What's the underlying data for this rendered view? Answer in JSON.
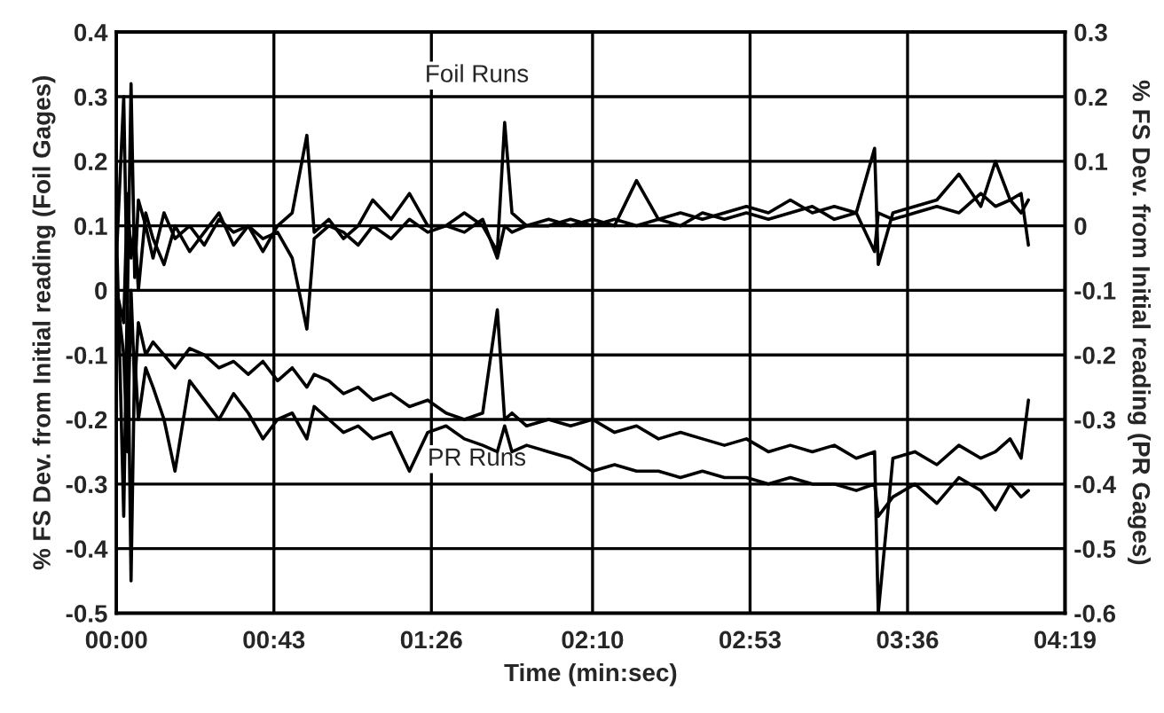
{
  "chart_data": {
    "type": "line",
    "xlabel": "Time (min:sec)",
    "ylabel": "% FS Dev. from Initial reading (Foil Gages)",
    "y2label": "% FS Dev. from Initial reading (PR Gages)",
    "x": [
      0,
      2,
      3,
      4,
      5,
      6,
      8,
      10,
      13,
      16,
      20,
      24,
      28,
      32,
      36,
      40,
      44,
      48,
      52,
      54,
      58,
      62,
      66,
      70,
      75,
      80,
      85,
      90,
      95,
      100,
      104,
      106,
      108,
      112,
      118,
      124,
      130,
      136,
      142,
      148,
      154,
      160,
      166,
      172,
      178,
      184,
      190,
      196,
      202,
      207,
      208,
      212,
      218,
      224,
      230,
      236,
      240,
      244,
      247,
      249
    ],
    "series": [
      {
        "color": "#000000",
        "values": [
          0.05,
          0.3,
          -0.02,
          0.32,
          0.02,
          0.14,
          0.1,
          0.05,
          0.12,
          0.08,
          0.1,
          0.07,
          0.11,
          0.09,
          0.1,
          0.06,
          0.1,
          0.12,
          0.24,
          0.09,
          0.11,
          0.08,
          0.1,
          0.14,
          0.11,
          0.15,
          0.1,
          0.1,
          0.12,
          0.1,
          0.06,
          0.26,
          0.12,
          0.1,
          0.11,
          0.1,
          0.11,
          0.1,
          0.17,
          0.11,
          0.12,
          0.11,
          0.12,
          0.13,
          0.12,
          0.14,
          0.12,
          0.13,
          0.12,
          0.22,
          0.04,
          0.12,
          0.13,
          0.14,
          0.18,
          0.13,
          0.2,
          0.14,
          0.15,
          0.07
        ]
      },
      {
        "color": "#000000",
        "values": [
          0.0,
          -0.05,
          0.15,
          0.05,
          0.1,
          0.0,
          0.12,
          0.08,
          0.04,
          0.1,
          0.06,
          0.09,
          0.12,
          0.07,
          0.1,
          0.08,
          0.09,
          0.05,
          -0.06,
          0.08,
          0.1,
          0.09,
          0.07,
          0.1,
          0.08,
          0.11,
          0.09,
          0.1,
          0.09,
          0.11,
          0.05,
          0.1,
          0.09,
          0.1,
          0.1,
          0.11,
          0.1,
          0.11,
          0.1,
          0.11,
          0.1,
          0.12,
          0.11,
          0.12,
          0.11,
          0.12,
          0.13,
          0.11,
          0.12,
          0.06,
          0.12,
          0.11,
          0.12,
          0.13,
          0.12,
          0.15,
          0.13,
          0.14,
          0.12,
          0.14
        ]
      },
      {
        "color": "#000000",
        "axis": "y2",
        "values": [
          -0.1,
          -0.2,
          -0.35,
          -0.1,
          -0.25,
          -0.15,
          -0.2,
          -0.18,
          -0.2,
          -0.22,
          -0.19,
          -0.2,
          -0.22,
          -0.21,
          -0.23,
          -0.21,
          -0.24,
          -0.22,
          -0.25,
          -0.23,
          -0.24,
          -0.26,
          -0.25,
          -0.27,
          -0.26,
          -0.28,
          -0.27,
          -0.29,
          -0.3,
          -0.29,
          -0.13,
          -0.3,
          -0.29,
          -0.31,
          -0.3,
          -0.31,
          -0.3,
          -0.32,
          -0.31,
          -0.33,
          -0.32,
          -0.33,
          -0.34,
          -0.33,
          -0.35,
          -0.34,
          -0.35,
          -0.34,
          -0.36,
          -0.35,
          -0.6,
          -0.36,
          -0.35,
          -0.37,
          -0.34,
          -0.36,
          -0.35,
          -0.33,
          -0.36,
          -0.27
        ]
      },
      {
        "color": "#000000",
        "axis": "y2",
        "values": [
          0.0,
          -0.45,
          -0.1,
          -0.55,
          -0.2,
          -0.3,
          -0.22,
          -0.25,
          -0.3,
          -0.38,
          -0.24,
          -0.27,
          -0.3,
          -0.26,
          -0.29,
          -0.33,
          -0.3,
          -0.29,
          -0.33,
          -0.28,
          -0.3,
          -0.32,
          -0.31,
          -0.33,
          -0.32,
          -0.38,
          -0.32,
          -0.31,
          -0.33,
          -0.34,
          -0.35,
          -0.31,
          -0.35,
          -0.34,
          -0.35,
          -0.36,
          -0.38,
          -0.37,
          -0.38,
          -0.38,
          -0.39,
          -0.38,
          -0.39,
          -0.39,
          -0.4,
          -0.39,
          -0.4,
          -0.4,
          -0.41,
          -0.4,
          -0.45,
          -0.42,
          -0.4,
          -0.43,
          -0.39,
          -0.41,
          -0.44,
          -0.4,
          -0.42,
          -0.41
        ]
      }
    ],
    "xlim": [
      0,
      259
    ],
    "xticks": [
      {
        "value": 0,
        "label": "00:00"
      },
      {
        "value": 43,
        "label": "00:43"
      },
      {
        "value": 86,
        "label": "01:26"
      },
      {
        "value": 130,
        "label": "02:10"
      },
      {
        "value": 173,
        "label": "02:53"
      },
      {
        "value": 216,
        "label": "03:36"
      },
      {
        "value": 259,
        "label": "04:19"
      }
    ],
    "ylim": [
      -0.5,
      0.4
    ],
    "yticks": [
      -0.5,
      -0.4,
      -0.3,
      -0.2,
      -0.1,
      0,
      0.1,
      0.2,
      0.3,
      0.4
    ],
    "y2lim": [
      -0.6,
      0.3
    ],
    "y2ticks": [
      -0.6,
      -0.5,
      -0.4,
      -0.3,
      -0.2,
      -0.1,
      0,
      0.1,
      0.2,
      0.3
    ],
    "annotations": [
      "Foil Runs",
      "PR Runs"
    ],
    "grid": true,
    "legend": false
  }
}
